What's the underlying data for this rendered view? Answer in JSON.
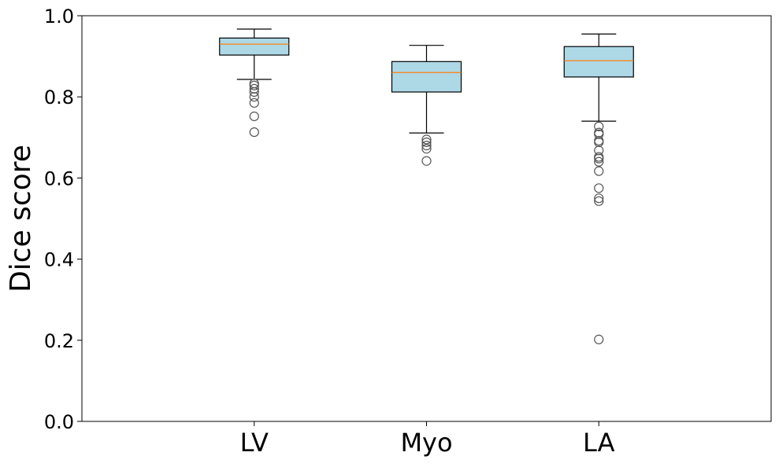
{
  "chart_data": {
    "type": "box",
    "title": "",
    "xlabel": "",
    "ylabel": "Dice score",
    "ylim": [
      0.0,
      1.0
    ],
    "yticks": [
      0.0,
      0.2,
      0.4,
      0.6,
      0.8,
      1.0
    ],
    "ytick_labels": [
      "0.0",
      "0.2",
      "0.4",
      "0.6",
      "0.8",
      "1.0"
    ],
    "categories": [
      "LV",
      "Myo",
      "LA"
    ],
    "grid": false,
    "colors": {
      "box_fill": "#add8e6",
      "box_edge": "#000000",
      "median": "#ff7f0e",
      "outlier_edge": "#555555"
    },
    "boxes": [
      {
        "name": "LV",
        "whisker_low": 0.843,
        "q1": 0.903,
        "median": 0.93,
        "q3": 0.945,
        "whisker_high": 0.967,
        "outliers": [
          0.833,
          0.828,
          0.82,
          0.812,
          0.8,
          0.785,
          0.752,
          0.713
        ]
      },
      {
        "name": "Myo",
        "whisker_low": 0.711,
        "q1": 0.812,
        "median": 0.86,
        "q3": 0.887,
        "whisker_high": 0.927,
        "outliers": [
          0.695,
          0.688,
          0.68,
          0.672,
          0.642
        ]
      },
      {
        "name": "LA",
        "whisker_low": 0.74,
        "q1": 0.849,
        "median": 0.889,
        "q3": 0.924,
        "whisker_high": 0.955,
        "outliers": [
          0.727,
          0.712,
          0.708,
          0.692,
          0.688,
          0.668,
          0.652,
          0.648,
          0.64,
          0.617,
          0.575,
          0.55,
          0.543,
          0.202
        ]
      }
    ]
  }
}
